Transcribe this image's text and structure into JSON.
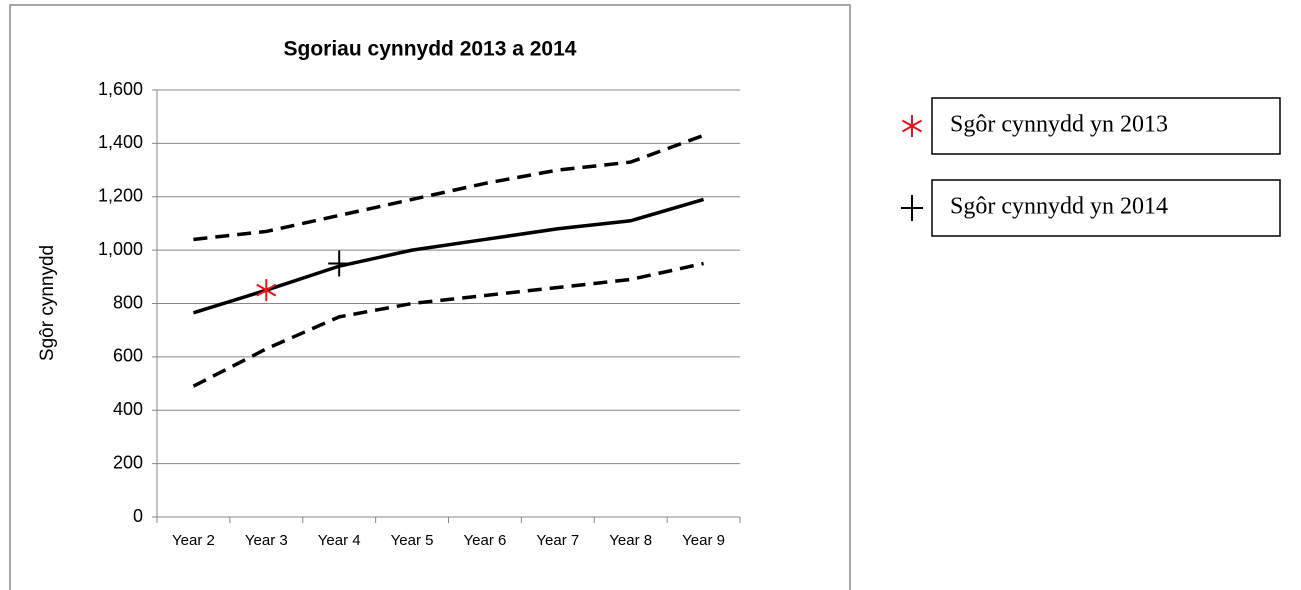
{
  "chart_data": {
    "type": "line",
    "title": "Sgoriau cynnydd 2013 a 2014",
    "y_label": "Sgôr cynnydd",
    "categories": [
      "Year 2",
      "Year 3",
      "Year 4",
      "Year 5",
      "Year 6",
      "Year 7",
      "Year 8",
      "Year 9"
    ],
    "series": [
      {
        "color": "#000000",
        "dashed": false,
        "values": [
          765,
          850,
          940,
          1000,
          1040,
          1080,
          1110,
          1190
        ]
      },
      {
        "color": "#000000",
        "dashed": true,
        "values": [
          1040,
          1070,
          1130,
          1190,
          1250,
          1300,
          1330,
          1430
        ]
      },
      {
        "color": "#000000",
        "dashed": true,
        "values": [
          490,
          630,
          750,
          800,
          830,
          860,
          890,
          950
        ]
      },
      {
        "name": "Sgôr cynnydd yn 2013",
        "color": "#e8141c",
        "marker": "asterisk",
        "values": [
          null,
          850,
          null,
          null,
          null,
          null,
          null,
          null
        ]
      },
      {
        "name": "Sgôr cynnydd yn 2014",
        "color": "#000000",
        "marker": "plus",
        "values": [
          null,
          null,
          950,
          null,
          null,
          null,
          null,
          null
        ]
      }
    ],
    "ylim": [
      0,
      1600
    ],
    "yticks": [
      0,
      200,
      400,
      600,
      800,
      {
        "value": 1000,
        "label": "1,000"
      },
      {
        "value": 1200,
        "label": "1,200"
      },
      {
        "value": 1400,
        "label": "1,400"
      },
      {
        "value": 1600,
        "label": "1,600"
      }
    ],
    "grid": true
  }
}
